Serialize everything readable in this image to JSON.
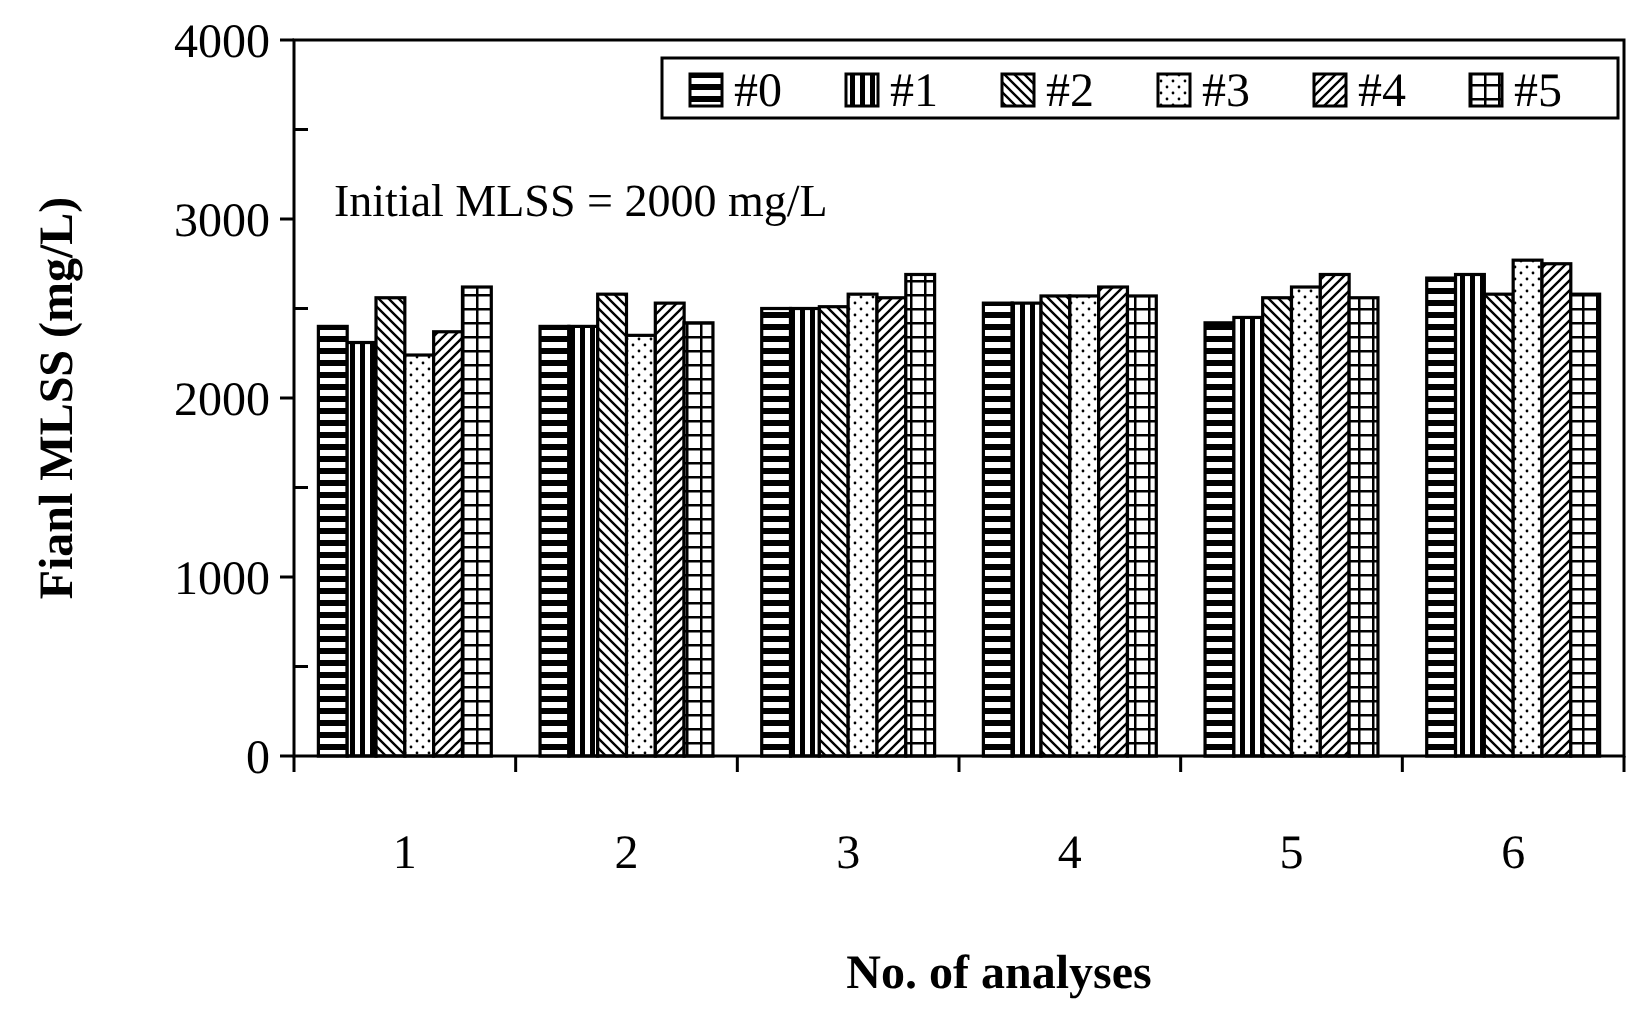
{
  "chart_data": {
    "type": "bar",
    "xlabel": "No. of analyses",
    "ylabel": "Fianl MLSS (mg/L)",
    "categories": [
      "1",
      "2",
      "3",
      "4",
      "5",
      "6"
    ],
    "series": [
      {
        "name": "#0",
        "color": "#000000",
        "values": [
          2400,
          2400,
          2500,
          2530,
          2420,
          2670
        ]
      },
      {
        "name": "#1",
        "color": "#000000",
        "values": [
          2310,
          2400,
          2500,
          2530,
          2450,
          2690
        ]
      },
      {
        "name": "#2",
        "color": "#000000",
        "values": [
          2560,
          2580,
          2510,
          2570,
          2560,
          2580
        ]
      },
      {
        "name": "#3",
        "color": "#000000",
        "values": [
          2240,
          2350,
          2580,
          2570,
          2620,
          2770
        ]
      },
      {
        "name": "#4",
        "color": "#000000",
        "values": [
          2370,
          2530,
          2560,
          2620,
          2690,
          2750
        ]
      },
      {
        "name": "#5",
        "color": "#000000",
        "values": [
          2620,
          2420,
          2690,
          2570,
          2560,
          2580
        ]
      }
    ],
    "ylim": [
      0,
      4000
    ],
    "yticks": [
      0,
      {
        "value": 500,
        "label": null
      },
      1000,
      {
        "value": 1500,
        "label": null
      },
      2000,
      {
        "value": 2500,
        "label": null
      },
      3000,
      {
        "value": 3500,
        "label": null
      },
      4000
    ],
    "annotations": [
      "Initial MLSS = 2000 mg/L"
    ],
    "legend": "top right",
    "grid": false
  }
}
